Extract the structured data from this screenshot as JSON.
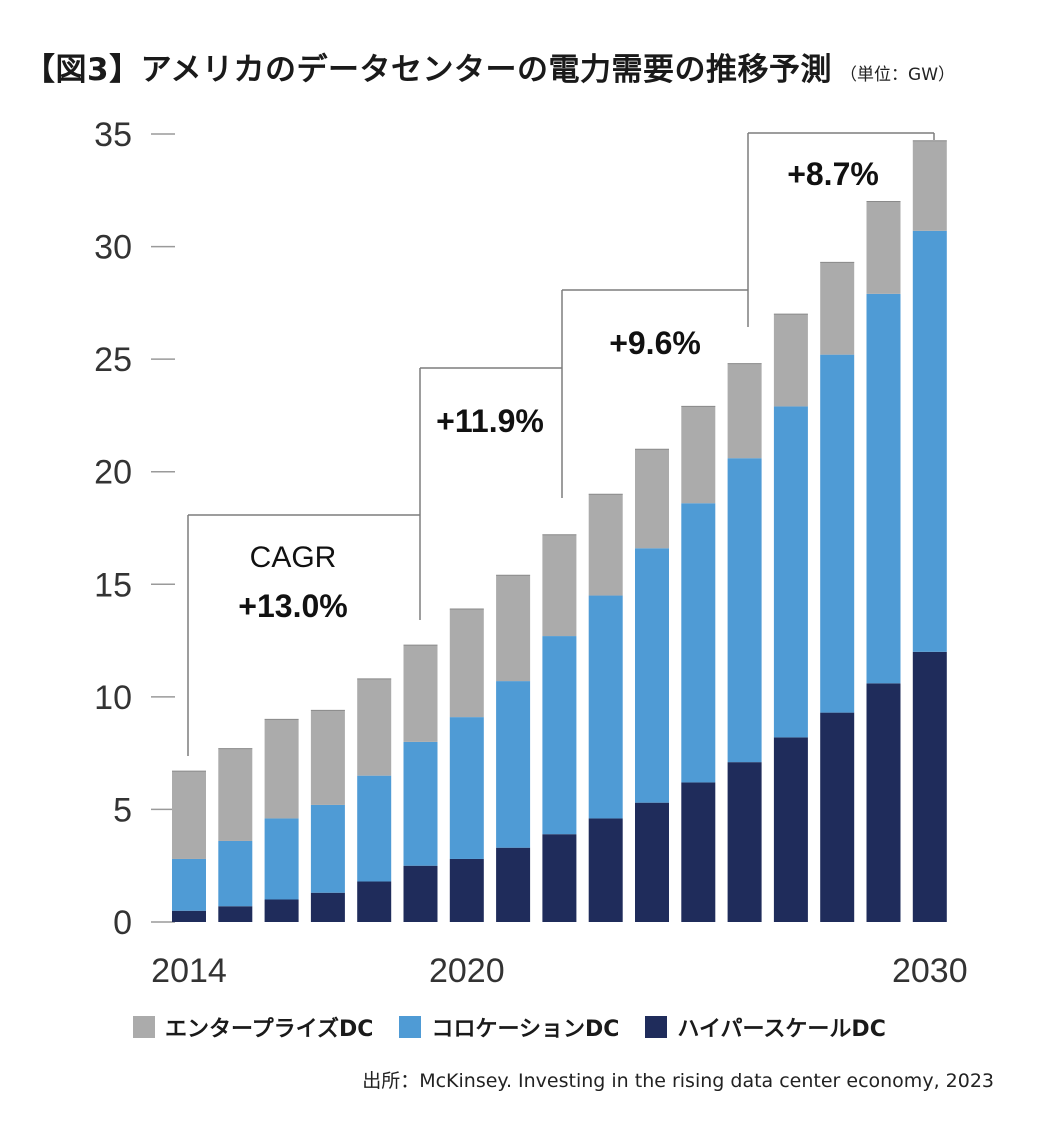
{
  "header": {
    "title": "【図3】アメリカのデータセンターの電力需要の推移予測",
    "unit": "（単位：GW）"
  },
  "legend": [
    {
      "label": "エンタープライズDC",
      "color": "#ababab"
    },
    {
      "label": "コロケーションDC",
      "color": "#4f9bd5"
    },
    {
      "label": "ハイパースケールDC",
      "color": "#1f2c5b"
    }
  ],
  "source": "出所：McKinsey. Investing in the rising data center economy, 2023",
  "chart_data": {
    "type": "bar",
    "stacked": true,
    "ylim": [
      0,
      35
    ],
    "yticks": [
      "0",
      "5",
      "10",
      "15",
      "20",
      "25",
      "30",
      "35"
    ],
    "xtick_labels": [
      "2014",
      "2020",
      "2030"
    ],
    "categories": [
      "2014",
      "2015",
      "2016",
      "2017",
      "2018",
      "2019",
      "2020",
      "2021",
      "2022",
      "2023",
      "2024",
      "2025",
      "2026",
      "2027",
      "2028",
      "2029",
      "2030"
    ],
    "series": [
      {
        "name": "ハイパースケールDC",
        "color": "#1f2c5b",
        "values": [
          0.5,
          0.7,
          1.0,
          1.3,
          1.8,
          2.5,
          2.8,
          3.3,
          3.9,
          4.6,
          5.3,
          6.2,
          7.1,
          8.2,
          9.3,
          10.6,
          12.0
        ]
      },
      {
        "name": "コロケーションDC",
        "color": "#4f9bd5",
        "values": [
          2.3,
          2.9,
          3.6,
          3.9,
          4.7,
          5.5,
          6.3,
          7.4,
          8.8,
          9.9,
          11.3,
          12.4,
          13.5,
          14.7,
          15.9,
          17.3,
          18.7
        ]
      },
      {
        "name": "エンタープライズDC",
        "color": "#ababab",
        "values": [
          3.9,
          4.1,
          4.4,
          4.2,
          4.3,
          4.3,
          4.8,
          4.7,
          4.5,
          4.5,
          4.4,
          4.3,
          4.2,
          4.1,
          4.1,
          4.1,
          4.0
        ]
      }
    ],
    "annotations": [
      {
        "line1": "CAGR",
        "line2": "+13.0%"
      },
      {
        "line1": "",
        "line2": "+11.9%"
      },
      {
        "line1": "",
        "line2": "+9.6%"
      },
      {
        "line1": "",
        "line2": "+8.7%"
      }
    ],
    "grid": false
  }
}
